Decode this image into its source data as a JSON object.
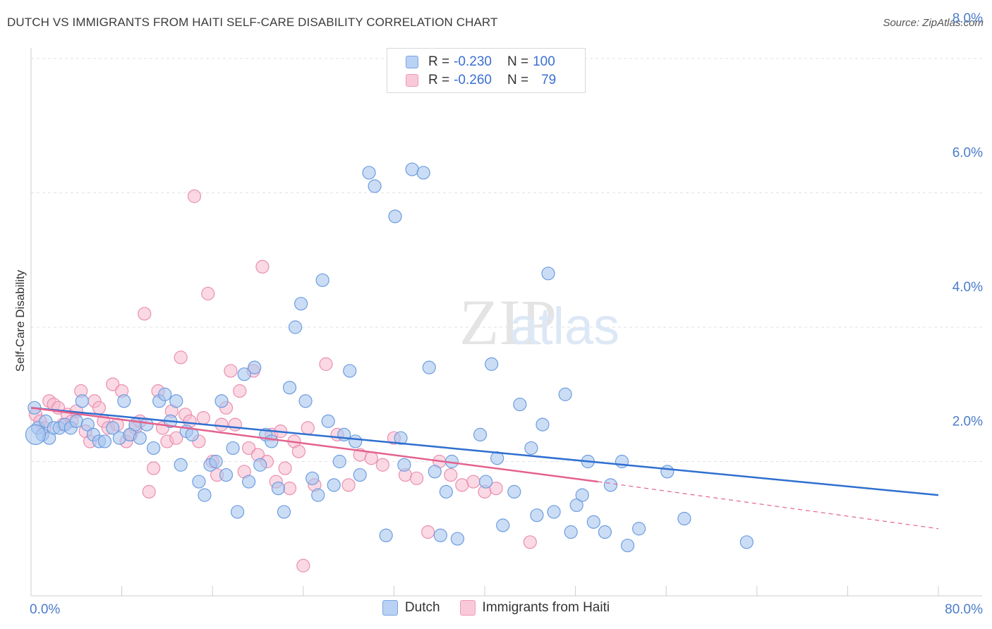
{
  "title": "DUTCH VS IMMIGRANTS FROM HAITI SELF-CARE DISABILITY CORRELATION CHART",
  "source": "Source: ZipAtlas.com",
  "watermark": {
    "zip": "ZIP",
    "atlas": "atlas"
  },
  "legend": {
    "rows": [
      {
        "r_label": "R =",
        "r_value": "-0.230",
        "n_label": "N =",
        "n_value": "100"
      },
      {
        "r_label": "R =",
        "r_value": "-0.260",
        "n_label": "N =",
        "n_value": "79"
      }
    ]
  },
  "bottom_legend": {
    "dutch": "Dutch",
    "haiti": "Immigrants from Haiti"
  },
  "colors": {
    "dutch_fill": "#a9c6ef",
    "dutch_stroke": "#6d9de0",
    "dutch_line": "#2f6fd0",
    "haiti_fill": "#f6b9ce",
    "haiti_stroke": "#ea8fb0",
    "haiti_line": "#e4628e",
    "tick_label": "#4a7cc9",
    "grid": "#e2e2e2"
  },
  "chart_data": {
    "type": "scatter",
    "ylabel": "Self-Care Disability",
    "xlim": [
      0,
      80
    ],
    "ylim": [
      0,
      8.4
    ],
    "y_ticks": [
      2,
      4,
      6,
      8
    ],
    "y_tick_labels": [
      "2.0%",
      "4.0%",
      "6.0%",
      "8.0%"
    ],
    "x_tick_labels": [
      "0.0%",
      "80.0%"
    ],
    "series": [
      {
        "name": "Dutch",
        "r": -0.23,
        "n": 100,
        "trend": {
          "x0": 0,
          "y0": 2.8,
          "x1": 80,
          "y1": 1.5
        },
        "points": [
          [
            0.3,
            2.8
          ],
          [
            0.6,
            2.5
          ],
          [
            1.0,
            2.4
          ],
          [
            1.3,
            2.6
          ],
          [
            1.6,
            2.35
          ],
          [
            2.0,
            2.5
          ],
          [
            2.5,
            2.5
          ],
          [
            3.0,
            2.55
          ],
          [
            3.5,
            2.5
          ],
          [
            4.0,
            2.6
          ],
          [
            4.5,
            2.9
          ],
          [
            5.0,
            2.55
          ],
          [
            5.5,
            2.4
          ],
          [
            6.0,
            2.3
          ],
          [
            6.5,
            2.3
          ],
          [
            7.2,
            2.5
          ],
          [
            7.8,
            2.35
          ],
          [
            8.2,
            2.9
          ],
          [
            8.7,
            2.4
          ],
          [
            9.2,
            2.55
          ],
          [
            9.6,
            2.35
          ],
          [
            10.2,
            2.55
          ],
          [
            10.8,
            2.2
          ],
          [
            11.3,
            2.9
          ],
          [
            11.8,
            3.0
          ],
          [
            12.3,
            2.6
          ],
          [
            12.8,
            2.9
          ],
          [
            13.2,
            1.95
          ],
          [
            13.7,
            2.45
          ],
          [
            14.2,
            2.4
          ],
          [
            14.8,
            1.7
          ],
          [
            15.3,
            1.5
          ],
          [
            15.8,
            1.95
          ],
          [
            16.3,
            2.0
          ],
          [
            16.8,
            2.9
          ],
          [
            17.2,
            1.8
          ],
          [
            17.8,
            2.2
          ],
          [
            18.2,
            1.25
          ],
          [
            18.8,
            3.3
          ],
          [
            19.2,
            1.7
          ],
          [
            19.7,
            3.4
          ],
          [
            20.2,
            1.95
          ],
          [
            20.7,
            2.4
          ],
          [
            21.2,
            2.3
          ],
          [
            21.8,
            1.6
          ],
          [
            22.3,
            1.25
          ],
          [
            22.8,
            3.1
          ],
          [
            23.3,
            4.0
          ],
          [
            23.8,
            4.35
          ],
          [
            24.2,
            2.9
          ],
          [
            24.8,
            1.75
          ],
          [
            25.3,
            1.5
          ],
          [
            25.7,
            4.7
          ],
          [
            26.2,
            2.6
          ],
          [
            26.7,
            1.65
          ],
          [
            27.2,
            2.0
          ],
          [
            27.6,
            2.4
          ],
          [
            28.1,
            3.35
          ],
          [
            28.6,
            2.3
          ],
          [
            29.0,
            1.8
          ],
          [
            29.8,
            6.3
          ],
          [
            30.3,
            6.1
          ],
          [
            31.3,
            0.9
          ],
          [
            32.1,
            5.65
          ],
          [
            32.6,
            2.35
          ],
          [
            32.9,
            1.95
          ],
          [
            33.6,
            6.35
          ],
          [
            34.6,
            6.3
          ],
          [
            35.1,
            3.4
          ],
          [
            35.6,
            1.85
          ],
          [
            36.1,
            0.9
          ],
          [
            36.6,
            1.55
          ],
          [
            37.1,
            2.0
          ],
          [
            37.6,
            0.85
          ],
          [
            39.6,
            2.4
          ],
          [
            40.1,
            1.7
          ],
          [
            40.6,
            3.45
          ],
          [
            41.1,
            2.05
          ],
          [
            41.6,
            1.05
          ],
          [
            42.6,
            1.55
          ],
          [
            43.1,
            2.85
          ],
          [
            44.1,
            2.2
          ],
          [
            44.6,
            1.2
          ],
          [
            45.1,
            2.55
          ],
          [
            45.6,
            4.8
          ],
          [
            46.1,
            1.25
          ],
          [
            47.1,
            3.0
          ],
          [
            47.6,
            0.95
          ],
          [
            48.1,
            1.35
          ],
          [
            48.6,
            1.5
          ],
          [
            49.1,
            2.0
          ],
          [
            49.6,
            1.1
          ],
          [
            50.6,
            0.95
          ],
          [
            51.1,
            1.65
          ],
          [
            52.1,
            2.0
          ],
          [
            52.6,
            0.75
          ],
          [
            53.6,
            1.0
          ],
          [
            56.1,
            1.85
          ],
          [
            57.6,
            1.15
          ],
          [
            63.1,
            0.8
          ]
        ]
      },
      {
        "name": "Immigrants from Haiti",
        "r": -0.26,
        "n": 79,
        "trend": {
          "x0": 0,
          "y0": 2.8,
          "x1": 50,
          "y1": 1.7,
          "dash_x1": 80,
          "dash_y1": 1.0
        },
        "points": [
          [
            0.4,
            2.7
          ],
          [
            0.8,
            2.6
          ],
          [
            1.2,
            2.5
          ],
          [
            1.6,
            2.9
          ],
          [
            2.0,
            2.85
          ],
          [
            2.4,
            2.8
          ],
          [
            2.8,
            2.55
          ],
          [
            3.2,
            2.7
          ],
          [
            3.6,
            2.6
          ],
          [
            4.0,
            2.75
          ],
          [
            4.4,
            3.05
          ],
          [
            4.8,
            2.45
          ],
          [
            5.2,
            2.3
          ],
          [
            5.6,
            2.9
          ],
          [
            6.0,
            2.8
          ],
          [
            6.4,
            2.6
          ],
          [
            6.8,
            2.5
          ],
          [
            7.2,
            3.15
          ],
          [
            7.6,
            2.55
          ],
          [
            8.0,
            3.05
          ],
          [
            8.4,
            2.3
          ],
          [
            8.8,
            2.4
          ],
          [
            9.2,
            2.5
          ],
          [
            9.6,
            2.6
          ],
          [
            10.0,
            4.2
          ],
          [
            10.4,
            1.55
          ],
          [
            10.8,
            1.9
          ],
          [
            11.2,
            3.05
          ],
          [
            11.6,
            2.5
          ],
          [
            12.0,
            2.3
          ],
          [
            12.4,
            2.75
          ],
          [
            12.8,
            2.35
          ],
          [
            13.2,
            3.55
          ],
          [
            13.6,
            2.7
          ],
          [
            14.0,
            2.6
          ],
          [
            14.4,
            5.95
          ],
          [
            14.8,
            2.3
          ],
          [
            15.2,
            2.65
          ],
          [
            15.6,
            4.5
          ],
          [
            16.0,
            2.0
          ],
          [
            16.4,
            1.8
          ],
          [
            16.8,
            2.55
          ],
          [
            17.2,
            2.8
          ],
          [
            17.6,
            3.35
          ],
          [
            18.0,
            2.55
          ],
          [
            18.4,
            3.05
          ],
          [
            18.8,
            1.85
          ],
          [
            19.2,
            2.2
          ],
          [
            19.6,
            3.35
          ],
          [
            20.0,
            2.1
          ],
          [
            20.4,
            4.9
          ],
          [
            20.8,
            2.0
          ],
          [
            21.2,
            2.4
          ],
          [
            21.6,
            1.7
          ],
          [
            22.0,
            2.45
          ],
          [
            22.4,
            1.9
          ],
          [
            22.8,
            1.6
          ],
          [
            23.2,
            2.3
          ],
          [
            23.6,
            2.15
          ],
          [
            24.0,
            0.45
          ],
          [
            24.4,
            2.5
          ],
          [
            25.0,
            1.65
          ],
          [
            26.0,
            3.45
          ],
          [
            27.0,
            2.4
          ],
          [
            28.0,
            1.65
          ],
          [
            29.0,
            2.1
          ],
          [
            30.0,
            2.05
          ],
          [
            31.0,
            1.95
          ],
          [
            32.0,
            2.35
          ],
          [
            33.0,
            1.8
          ],
          [
            34.0,
            1.75
          ],
          [
            35.0,
            0.95
          ],
          [
            36.0,
            2.0
          ],
          [
            37.0,
            1.8
          ],
          [
            38.0,
            1.65
          ],
          [
            39.0,
            1.7
          ],
          [
            40.0,
            1.55
          ],
          [
            41.0,
            1.6
          ],
          [
            44.0,
            0.8
          ]
        ]
      }
    ]
  }
}
